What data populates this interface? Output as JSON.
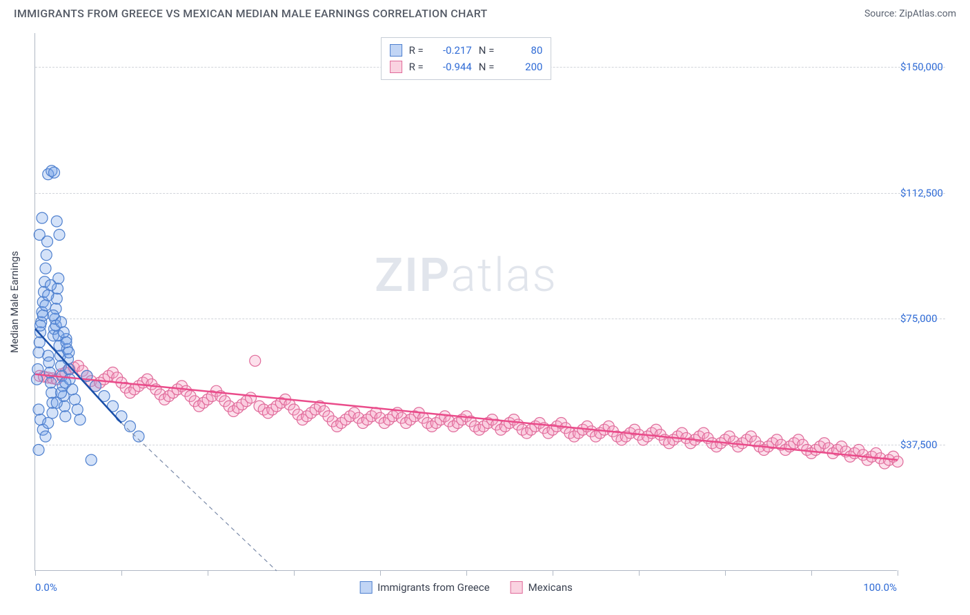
{
  "header": {
    "title": "IMMIGRANTS FROM GREECE VS MEXICAN MEDIAN MALE EARNINGS CORRELATION CHART",
    "source": "Source: ZipAtlas.com"
  },
  "chart": {
    "type": "scatter",
    "yaxis_title": "Median Male Earnings",
    "background_color": "#ffffff",
    "grid_color": "#d0d4da",
    "axis_color": "#b0b8c4",
    "tick_label_color": "#2f6bd6",
    "axis_title_color": "#3a4150",
    "xlim": [
      0,
      100
    ],
    "ylim": [
      0,
      160000
    ],
    "x_tick_positions": [
      0,
      10,
      20,
      30,
      40,
      50,
      60,
      70,
      80,
      90,
      100
    ],
    "x_tick_labels": {
      "0": "0.0%",
      "100": "100.0%"
    },
    "y_gridlines": [
      37500,
      75000,
      112500,
      150000
    ],
    "y_tick_labels": {
      "37500": "$37,500",
      "75000": "$75,000",
      "112500": "$112,500",
      "150000": "$150,000"
    },
    "marker_radius": 8,
    "marker_fill_opacity": 0.3,
    "marker_stroke_width": 1.2,
    "watermark": "ZIPatlas",
    "series": {
      "greece": {
        "label": "Immigrants from Greece",
        "color_fill": "#6fa0e8",
        "color_stroke": "#4d7fce",
        "R": "-0.217",
        "N": "80",
        "regression": {
          "x1": 0,
          "y1": 72000,
          "x2": 10,
          "y2": 44000,
          "dash_x2": 28,
          "dash_y2": 0,
          "stroke": "#1a4fa8",
          "width": 2.5
        },
        "points": [
          [
            0.2,
            57000
          ],
          [
            0.3,
            60000
          ],
          [
            0.4,
            65000
          ],
          [
            0.5,
            68000
          ],
          [
            0.6,
            71000
          ],
          [
            0.7,
            74000
          ],
          [
            0.8,
            77000
          ],
          [
            0.9,
            80000
          ],
          [
            1.0,
            83000
          ],
          [
            1.1,
            86000
          ],
          [
            1.2,
            90000
          ],
          [
            1.3,
            94000
          ],
          [
            1.4,
            98000
          ],
          [
            1.5,
            64000
          ],
          [
            1.6,
            62000
          ],
          [
            1.7,
            59000
          ],
          [
            1.8,
            56000
          ],
          [
            1.9,
            53000
          ],
          [
            2.0,
            50000
          ],
          [
            2.1,
            70000
          ],
          [
            2.2,
            72000
          ],
          [
            2.3,
            75000
          ],
          [
            2.4,
            78000
          ],
          [
            2.5,
            81000
          ],
          [
            2.6,
            84000
          ],
          [
            2.7,
            87000
          ],
          [
            2.8,
            67000
          ],
          [
            2.9,
            64000
          ],
          [
            3.0,
            61000
          ],
          [
            3.1,
            58000
          ],
          [
            3.2,
            55000
          ],
          [
            3.3,
            52000
          ],
          [
            3.4,
            49000
          ],
          [
            3.5,
            46000
          ],
          [
            3.6,
            69000
          ],
          [
            3.7,
            66000
          ],
          [
            3.8,
            63000
          ],
          [
            3.9,
            60000
          ],
          [
            4.0,
            57000
          ],
          [
            4.3,
            54000
          ],
          [
            4.6,
            51000
          ],
          [
            4.9,
            48000
          ],
          [
            5.2,
            45000
          ],
          [
            0.5,
            100000
          ],
          [
            0.8,
            105000
          ],
          [
            1.5,
            118000
          ],
          [
            1.9,
            119000
          ],
          [
            2.2,
            118500
          ],
          [
            2.8,
            100000
          ],
          [
            2.5,
            104000
          ],
          [
            0.4,
            48000
          ],
          [
            0.6,
            45000
          ],
          [
            0.9,
            42000
          ],
          [
            1.2,
            40000
          ],
          [
            1.5,
            44000
          ],
          [
            2.0,
            47000
          ],
          [
            2.5,
            50000
          ],
          [
            3.0,
            53000
          ],
          [
            3.5,
            56000
          ],
          [
            0.6,
            73000
          ],
          [
            0.9,
            76000
          ],
          [
            1.2,
            79000
          ],
          [
            1.5,
            82000
          ],
          [
            1.8,
            85000
          ],
          [
            2.1,
            76000
          ],
          [
            2.4,
            73000
          ],
          [
            2.7,
            70000
          ],
          [
            3.0,
            74000
          ],
          [
            3.3,
            71000
          ],
          [
            3.6,
            68000
          ],
          [
            3.9,
            65000
          ],
          [
            6.0,
            58000
          ],
          [
            7.0,
            55000
          ],
          [
            8.0,
            52000
          ],
          [
            9.0,
            49000
          ],
          [
            10.0,
            46000
          ],
          [
            11.0,
            43000
          ],
          [
            12.0,
            40000
          ],
          [
            0.4,
            36000
          ],
          [
            6.5,
            33000
          ]
        ]
      },
      "mexicans": {
        "label": "Mexicans",
        "color_fill": "#f49ac0",
        "color_stroke": "#e06a9a",
        "R": "-0.944",
        "N": "200",
        "regression": {
          "x1": 0,
          "y1": 58500,
          "x2": 100,
          "y2": 33000,
          "stroke": "#ea4b8a",
          "width": 2.5
        },
        "points": [
          [
            0.5,
            58000
          ],
          [
            1,
            57800
          ],
          [
            1.5,
            57500
          ],
          [
            2,
            57300
          ],
          [
            2.5,
            57000
          ],
          [
            3,
            58500
          ],
          [
            3.5,
            59000
          ],
          [
            4,
            60000
          ],
          [
            4.5,
            60500
          ],
          [
            5,
            61000
          ],
          [
            5.5,
            59500
          ],
          [
            6,
            58000
          ],
          [
            6.5,
            56500
          ],
          [
            7,
            55000
          ],
          [
            7.5,
            56000
          ],
          [
            8,
            57000
          ],
          [
            8.5,
            58000
          ],
          [
            9,
            59000
          ],
          [
            9.5,
            57500
          ],
          [
            10,
            56000
          ],
          [
            10.5,
            54500
          ],
          [
            11,
            53000
          ],
          [
            11.5,
            54000
          ],
          [
            12,
            55000
          ],
          [
            12.5,
            56000
          ],
          [
            13,
            57000
          ],
          [
            13.5,
            55500
          ],
          [
            14,
            54000
          ],
          [
            14.5,
            52500
          ],
          [
            15,
            51000
          ],
          [
            15.5,
            52000
          ],
          [
            16,
            53000
          ],
          [
            16.5,
            54000
          ],
          [
            17,
            55000
          ],
          [
            17.5,
            53500
          ],
          [
            18,
            52000
          ],
          [
            18.5,
            50500
          ],
          [
            19,
            49000
          ],
          [
            19.5,
            50000
          ],
          [
            20,
            51000
          ],
          [
            20.5,
            52000
          ],
          [
            21,
            53500
          ],
          [
            21.5,
            52000
          ],
          [
            22,
            50500
          ],
          [
            22.5,
            49000
          ],
          [
            23,
            47500
          ],
          [
            23.5,
            48500
          ],
          [
            24,
            49500
          ],
          [
            24.5,
            50500
          ],
          [
            25,
            51500
          ],
          [
            25.5,
            62500
          ],
          [
            26,
            49000
          ],
          [
            26.5,
            48000
          ],
          [
            27,
            47000
          ],
          [
            27.5,
            48000
          ],
          [
            28,
            49000
          ],
          [
            28.5,
            50000
          ],
          [
            29,
            51000
          ],
          [
            29.5,
            49500
          ],
          [
            30,
            48000
          ],
          [
            30.5,
            46500
          ],
          [
            31,
            45000
          ],
          [
            31.5,
            46000
          ],
          [
            32,
            47000
          ],
          [
            32.5,
            48000
          ],
          [
            33,
            49000
          ],
          [
            33.5,
            47500
          ],
          [
            34,
            46000
          ],
          [
            34.5,
            44500
          ],
          [
            35,
            43000
          ],
          [
            35.5,
            44000
          ],
          [
            36,
            45000
          ],
          [
            36.5,
            46000
          ],
          [
            37,
            47000
          ],
          [
            37.5,
            45500
          ],
          [
            38,
            44000
          ],
          [
            38.5,
            45000
          ],
          [
            39,
            46000
          ],
          [
            39.5,
            47000
          ],
          [
            40,
            45500
          ],
          [
            40.5,
            44000
          ],
          [
            41,
            45000
          ],
          [
            41.5,
            46000
          ],
          [
            42,
            47000
          ],
          [
            42.5,
            45500
          ],
          [
            43,
            44000
          ],
          [
            43.5,
            45000
          ],
          [
            44,
            46000
          ],
          [
            44.5,
            47000
          ],
          [
            45,
            45500
          ],
          [
            45.5,
            44000
          ],
          [
            46,
            43000
          ],
          [
            46.5,
            44000
          ],
          [
            47,
            45000
          ],
          [
            47.5,
            46000
          ],
          [
            48,
            44500
          ],
          [
            48.5,
            43000
          ],
          [
            49,
            44000
          ],
          [
            49.5,
            45000
          ],
          [
            50,
            46000
          ],
          [
            50.5,
            44500
          ],
          [
            51,
            43000
          ],
          [
            51.5,
            42000
          ],
          [
            52,
            43000
          ],
          [
            52.5,
            44000
          ],
          [
            53,
            45000
          ],
          [
            53.5,
            43500
          ],
          [
            54,
            42000
          ],
          [
            54.5,
            43000
          ],
          [
            55,
            44000
          ],
          [
            55.5,
            45000
          ],
          [
            56,
            43500
          ],
          [
            56.5,
            42000
          ],
          [
            57,
            41000
          ],
          [
            57.5,
            42000
          ],
          [
            58,
            43000
          ],
          [
            58.5,
            44000
          ],
          [
            59,
            42500
          ],
          [
            59.5,
            41000
          ],
          [
            60,
            42000
          ],
          [
            60.5,
            43000
          ],
          [
            61,
            44000
          ],
          [
            61.5,
            42500
          ],
          [
            62,
            41000
          ],
          [
            62.5,
            40000
          ],
          [
            63,
            41000
          ],
          [
            63.5,
            42000
          ],
          [
            64,
            43000
          ],
          [
            64.5,
            41500
          ],
          [
            65,
            40000
          ],
          [
            65.5,
            41000
          ],
          [
            66,
            42000
          ],
          [
            66.5,
            43000
          ],
          [
            67,
            41500
          ],
          [
            67.5,
            40000
          ],
          [
            68,
            39000
          ],
          [
            68.5,
            40000
          ],
          [
            69,
            41000
          ],
          [
            69.5,
            42000
          ],
          [
            70,
            40500
          ],
          [
            70.5,
            39000
          ],
          [
            71,
            40000
          ],
          [
            71.5,
            41000
          ],
          [
            72,
            42000
          ],
          [
            72.5,
            40500
          ],
          [
            73,
            39000
          ],
          [
            73.5,
            38000
          ],
          [
            74,
            39000
          ],
          [
            74.5,
            40000
          ],
          [
            75,
            41000
          ],
          [
            75.5,
            39500
          ],
          [
            76,
            38000
          ],
          [
            76.5,
            39000
          ],
          [
            77,
            40000
          ],
          [
            77.5,
            41000
          ],
          [
            78,
            39500
          ],
          [
            78.5,
            38000
          ],
          [
            79,
            37000
          ],
          [
            79.5,
            38000
          ],
          [
            80,
            39000
          ],
          [
            80.5,
            40000
          ],
          [
            81,
            38500
          ],
          [
            81.5,
            37000
          ],
          [
            82,
            38000
          ],
          [
            82.5,
            39000
          ],
          [
            83,
            40000
          ],
          [
            83.5,
            38500
          ],
          [
            84,
            37000
          ],
          [
            84.5,
            36000
          ],
          [
            85,
            37000
          ],
          [
            85.5,
            38000
          ],
          [
            86,
            39000
          ],
          [
            86.5,
            37500
          ],
          [
            87,
            36000
          ],
          [
            87.5,
            37000
          ],
          [
            88,
            38000
          ],
          [
            88.5,
            39000
          ],
          [
            89,
            37500
          ],
          [
            89.5,
            36000
          ],
          [
            90,
            35000
          ],
          [
            90.5,
            36000
          ],
          [
            91,
            37000
          ],
          [
            91.5,
            38000
          ],
          [
            92,
            36500
          ],
          [
            92.5,
            35000
          ],
          [
            93,
            36000
          ],
          [
            93.5,
            37000
          ],
          [
            94,
            35500
          ],
          [
            94.5,
            34000
          ],
          [
            95,
            35000
          ],
          [
            95.5,
            36000
          ],
          [
            96,
            34500
          ],
          [
            96.5,
            33000
          ],
          [
            97,
            34000
          ],
          [
            97.5,
            35000
          ],
          [
            98,
            33500
          ],
          [
            98.5,
            32000
          ],
          [
            99,
            33000
          ],
          [
            99.5,
            34000
          ],
          [
            100,
            32500
          ]
        ]
      }
    }
  },
  "legend": {
    "series1": "Immigrants from Greece",
    "series2": "Mexicans"
  }
}
